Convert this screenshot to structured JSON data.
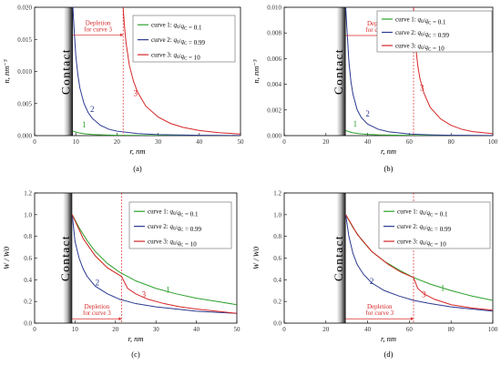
{
  "colors": {
    "curve1": "#2ca02c",
    "curve2": "#2b3990",
    "curve3": "#d62728",
    "depletion": "#d62728",
    "cutoff": "#8a5a00"
  },
  "chart_data": [
    {
      "panel": "(a)",
      "type": "line",
      "xlabel": "r, nm",
      "ylabel": "n, nm⁻³",
      "xlim": [
        0,
        50
      ],
      "ylim": [
        0,
        0.02
      ],
      "xticks": [
        "0",
        "10",
        "20",
        "30",
        "40",
        "50"
      ],
      "yticks": [
        "0.000",
        "0.005",
        "0.010",
        "0.015",
        "0.020"
      ],
      "contact_label": "Contact",
      "contact_r": 9.3,
      "annotation": {
        "text_line1": "Depletion",
        "text_line2": "for curve 3",
        "r_depletion": 21.5,
        "y": 0.0157
      },
      "legend": [
        {
          "prefix": "curve 1: ",
          "q0": "q",
          "sub0": "0",
          "slash": "/",
          "qc": "q",
          "subc": "C",
          "value": " = 0.1"
        },
        {
          "prefix": "curve 2: ",
          "q0": "q",
          "sub0": "0",
          "slash": "/",
          "qc": "q",
          "subc": "C",
          "value": " = 0.99"
        },
        {
          "prefix": "curve 3: ",
          "q0": "q",
          "sub0": "0",
          "slash": "/",
          "qc": "q",
          "subc": "C",
          "value": " = 10"
        }
      ],
      "series": [
        {
          "name": "1",
          "label": "1",
          "label_xy": [
            12,
            0.0013
          ],
          "x": [
            9.3,
            10,
            11,
            12,
            14,
            17,
            20,
            25,
            30,
            40,
            50
          ],
          "y": [
            0.0007,
            0.00055,
            0.0004,
            0.0003,
            0.00018,
            0.0001,
            6e-05,
            3e-05,
            2e-05,
            1e-05,
            0.0
          ]
        },
        {
          "name": "2",
          "label": "2",
          "label_xy": [
            14,
            0.0037
          ],
          "x": [
            9.3,
            9.6,
            10,
            10.5,
            11,
            12,
            13,
            14,
            16,
            18,
            20,
            25,
            30,
            40,
            50
          ],
          "y": [
            0.02,
            0.0165,
            0.0125,
            0.0095,
            0.0074,
            0.005,
            0.0036,
            0.0027,
            0.0016,
            0.001,
            0.0007,
            0.00032,
            0.00016,
            5e-05,
            2e-05
          ]
        },
        {
          "name": "3",
          "label": "3",
          "label_xy": [
            24.5,
            0.0062
          ],
          "x": [
            21.5,
            21.8,
            22.2,
            23,
            24,
            25,
            27,
            30,
            33,
            36,
            40,
            45,
            50
          ],
          "y": [
            0.02,
            0.0172,
            0.0145,
            0.011,
            0.0085,
            0.0068,
            0.0046,
            0.0029,
            0.0019,
            0.0013,
            0.0008,
            0.00045,
            0.00025
          ]
        }
      ]
    },
    {
      "panel": "(b)",
      "type": "line",
      "xlabel": "r, nm",
      "ylabel": "n, nm⁻³",
      "xlim": [
        0,
        100
      ],
      "ylim": [
        0,
        0.01
      ],
      "xticks": [
        "0",
        "20",
        "40",
        "60",
        "80",
        "100"
      ],
      "yticks": [
        "0.000",
        "0.002",
        "0.004",
        "0.006",
        "0.008",
        "0.010"
      ],
      "contact_label": "Contact",
      "contact_r": 29.5,
      "annotation": {
        "text_line1": "Depletion",
        "text_line2": "for curve 3",
        "r_depletion": 62,
        "y": 0.0078
      },
      "legend": [
        {
          "prefix": "curve 1: ",
          "q0": "q",
          "sub0": "0",
          "slash": "/",
          "qc": "q",
          "subc": "C",
          "value": " = 0.1"
        },
        {
          "prefix": "curve 2: ",
          "q0": "q",
          "sub0": "0",
          "slash": "/",
          "qc": "q",
          "subc": "C",
          "value": " = 0.99"
        },
        {
          "prefix": "curve 3: ",
          "q0": "q",
          "sub0": "0",
          "slash": "/",
          "qc": "q",
          "subc": "C",
          "value": " = 10"
        }
      ],
      "series": [
        {
          "name": "1",
          "label": "1",
          "label_xy": [
            34,
            0.0007
          ],
          "x": [
            29.5,
            31,
            33,
            36,
            40,
            45,
            50,
            60,
            70,
            80,
            100
          ],
          "y": [
            0.0004,
            0.0003,
            0.00022,
            0.00015,
            0.0001,
            6e-05,
            4e-05,
            2e-05,
            1e-05,
            5e-06,
            0.0
          ]
        },
        {
          "name": "2",
          "label": "2",
          "label_xy": [
            40,
            0.0015
          ],
          "x": [
            29.5,
            30,
            31,
            32,
            33,
            35,
            37,
            40,
            45,
            50,
            60,
            70,
            80,
            100
          ],
          "y": [
            0.01,
            0.0085,
            0.0058,
            0.0042,
            0.0032,
            0.002,
            0.0014,
            0.0009,
            0.0005,
            0.0003,
            0.00012,
            6e-05,
            3e-05,
            1e-05
          ]
        },
        {
          "name": "3",
          "label": "3",
          "label_xy": [
            66,
            0.0035
          ],
          "x": [
            62,
            62.5,
            63,
            64,
            65,
            67,
            70,
            75,
            80,
            85,
            90,
            100
          ],
          "y": [
            0.01,
            0.0082,
            0.007,
            0.0055,
            0.0045,
            0.0033,
            0.0022,
            0.0013,
            0.0008,
            0.0005,
            0.00032,
            0.00015
          ]
        }
      ]
    },
    {
      "panel": "(c)",
      "type": "line",
      "xlabel": "r, nm",
      "ylabel": "W / W0",
      "xlim": [
        0,
        50
      ],
      "ylim": [
        0,
        1.2
      ],
      "xticks": [
        "0",
        "10",
        "20",
        "30",
        "40",
        "50"
      ],
      "yticks": [
        "0.0",
        "0.2",
        "0.4",
        "0.6",
        "0.8",
        "1.0",
        "1.2"
      ],
      "contact_label": "Contact",
      "contact_r": 9.3,
      "annotation": {
        "text_line1": "Depletion",
        "text_line2": "for curve 3",
        "r_depletion": 21.5,
        "y": 0.04
      },
      "legend": [
        {
          "prefix": "curve 1: ",
          "q0": "q",
          "sub0": "0",
          "slash": "/",
          "qc": "q",
          "subc": "C",
          "value": " = 0.1"
        },
        {
          "prefix": "curve 2: ",
          "q0": "q",
          "sub0": "0",
          "slash": "/",
          "qc": "q",
          "subc": "C",
          "value": " = 0.99"
        },
        {
          "prefix": "curve 3: ",
          "q0": "q",
          "sub0": "0",
          "slash": "/",
          "qc": "q",
          "subc": "C",
          "value": " = 10"
        }
      ],
      "dotted_reference": {
        "x": [
          9.3,
          12,
          15,
          18,
          21.5
        ],
        "y": [
          1.0,
          0.78,
          0.62,
          0.51,
          0.43
        ]
      },
      "series": [
        {
          "name": "1",
          "label": "1",
          "label_xy": [
            33,
            0.28
          ],
          "x": [
            9.3,
            11,
            13,
            15,
            18,
            21,
            25,
            30,
            35,
            40,
            45,
            50
          ],
          "y": [
            1.0,
            0.88,
            0.76,
            0.66,
            0.55,
            0.47,
            0.39,
            0.32,
            0.27,
            0.23,
            0.2,
            0.17
          ]
        },
        {
          "name": "2",
          "label": "2",
          "label_xy": [
            15.5,
            0.35
          ],
          "x": [
            9.3,
            10,
            11,
            12,
            13,
            15,
            18,
            21,
            25,
            30,
            35,
            40,
            45,
            50
          ],
          "y": [
            1.0,
            0.75,
            0.6,
            0.5,
            0.43,
            0.34,
            0.27,
            0.22,
            0.18,
            0.15,
            0.13,
            0.11,
            0.1,
            0.09
          ]
        },
        {
          "name": "3",
          "label": "3",
          "label_xy": [
            27,
            0.24
          ],
          "x": [
            9.3,
            12,
            15,
            18,
            21.5,
            23,
            25,
            28,
            32,
            36,
            40,
            45,
            50
          ],
          "y": [
            1.0,
            0.78,
            0.62,
            0.51,
            0.43,
            0.32,
            0.27,
            0.22,
            0.18,
            0.15,
            0.13,
            0.11,
            0.09
          ]
        }
      ]
    },
    {
      "panel": "(d)",
      "type": "line",
      "xlabel": "r, nm",
      "ylabel": "W / W0",
      "xlim": [
        0,
        100
      ],
      "ylim": [
        0,
        1.2
      ],
      "xticks": [
        "0",
        "20",
        "40",
        "60",
        "80",
        "100"
      ],
      "yticks": [
        "0.0",
        "0.2",
        "0.4",
        "0.6",
        "0.8",
        "1.0",
        "1.2"
      ],
      "contact_label": "Contact",
      "contact_r": 29.5,
      "annotation": {
        "text_line1": "Depletion",
        "text_line2": "for curve 3",
        "r_depletion": 62,
        "y": 0.04
      },
      "legend": [
        {
          "prefix": "curve 1: ",
          "q0": "q",
          "sub0": "0",
          "slash": "/",
          "qc": "q",
          "subc": "C",
          "value": " = 0.1"
        },
        {
          "prefix": "curve 2: ",
          "q0": "q",
          "sub0": "0",
          "slash": "/",
          "qc": "q",
          "subc": "C",
          "value": " = 0.99"
        },
        {
          "prefix": "curve 3: ",
          "q0": "q",
          "sub0": "0",
          "slash": "/",
          "qc": "q",
          "subc": "C",
          "value": " = 10"
        }
      ],
      "dotted_reference": {
        "x": [
          29.5,
          35,
          42,
          50,
          56,
          62
        ],
        "y": [
          1.0,
          0.82,
          0.66,
          0.54,
          0.47,
          0.42
        ]
      },
      "series": [
        {
          "name": "1",
          "label": "1",
          "label_xy": [
            76,
            0.3
          ],
          "x": [
            29.5,
            33,
            37,
            42,
            48,
            55,
            62,
            70,
            80,
            90,
            100
          ],
          "y": [
            1.0,
            0.88,
            0.77,
            0.66,
            0.57,
            0.49,
            0.42,
            0.36,
            0.3,
            0.25,
            0.21
          ]
        },
        {
          "name": "2",
          "label": "2",
          "label_xy": [
            42,
            0.36
          ],
          "x": [
            29.5,
            31,
            33,
            35,
            38,
            42,
            48,
            55,
            62,
            70,
            80,
            90,
            100
          ],
          "y": [
            1.0,
            0.8,
            0.64,
            0.54,
            0.45,
            0.37,
            0.3,
            0.25,
            0.21,
            0.18,
            0.15,
            0.13,
            0.11
          ]
        },
        {
          "name": "3",
          "label": "3",
          "label_xy": [
            67,
            0.24
          ],
          "x": [
            29.5,
            35,
            42,
            50,
            56,
            62,
            64,
            67,
            72,
            80,
            90,
            100
          ],
          "y": [
            1.0,
            0.82,
            0.66,
            0.54,
            0.47,
            0.42,
            0.32,
            0.27,
            0.22,
            0.17,
            0.14,
            0.12
          ]
        }
      ]
    }
  ]
}
